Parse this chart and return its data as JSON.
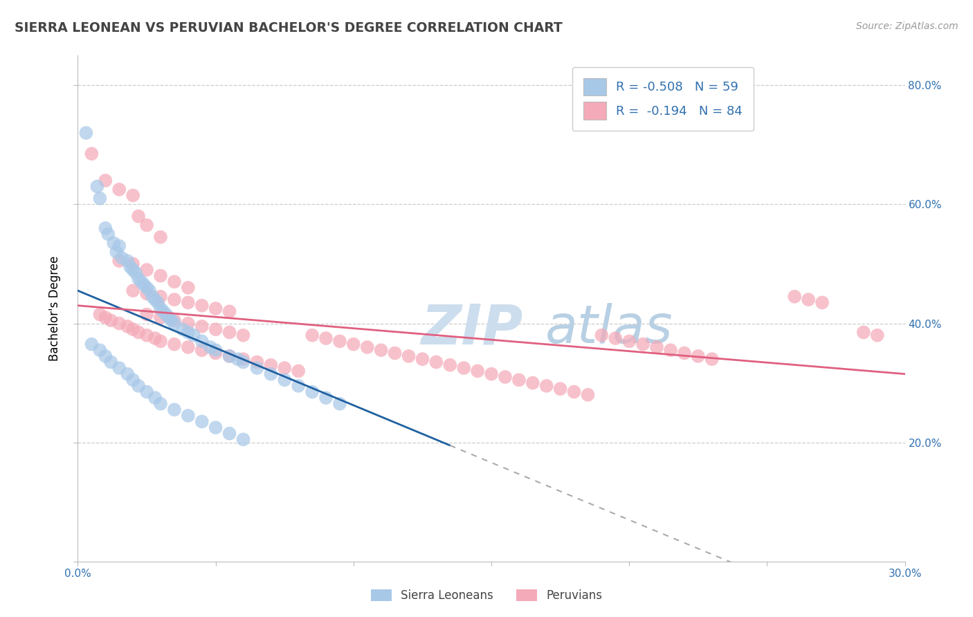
{
  "title": "SIERRA LEONEAN VS PERUVIAN BACHELOR'S DEGREE CORRELATION CHART",
  "source": "Source: ZipAtlas.com",
  "ylabel": "Bachelor's Degree",
  "xlim": [
    0.0,
    0.3
  ],
  "ylim": [
    0.0,
    0.85
  ],
  "sierra_leone_color": "#a8c8e8",
  "peru_color": "#f4aab8",
  "sierra_leone_line_color": "#2060a0",
  "peru_line_color": "#e06080",
  "watermark_color": "#ccdded",
  "background_color": "#ffffff",
  "grid_color": "#cccccc",
  "title_color": "#444444",
  "axis_tick_color": "#3070b0",
  "sl_line_x0": 0.0,
  "sl_line_y0": 0.455,
  "sl_line_x1": 0.135,
  "sl_line_y1": 0.195,
  "pe_line_x0": 0.0,
  "pe_line_y0": 0.43,
  "pe_line_x1": 0.3,
  "pe_line_y1": 0.315,
  "sierra_leonean_points": [
    [
      0.003,
      0.72
    ],
    [
      0.007,
      0.63
    ],
    [
      0.008,
      0.61
    ],
    [
      0.01,
      0.56
    ],
    [
      0.011,
      0.55
    ],
    [
      0.013,
      0.535
    ],
    [
      0.014,
      0.52
    ],
    [
      0.015,
      0.53
    ],
    [
      0.016,
      0.51
    ],
    [
      0.018,
      0.505
    ],
    [
      0.019,
      0.495
    ],
    [
      0.02,
      0.49
    ],
    [
      0.021,
      0.485
    ],
    [
      0.022,
      0.475
    ],
    [
      0.023,
      0.47
    ],
    [
      0.024,
      0.465
    ],
    [
      0.025,
      0.46
    ],
    [
      0.026,
      0.455
    ],
    [
      0.027,
      0.445
    ],
    [
      0.028,
      0.44
    ],
    [
      0.029,
      0.435
    ],
    [
      0.03,
      0.425
    ],
    [
      0.031,
      0.42
    ],
    [
      0.032,
      0.415
    ],
    [
      0.033,
      0.41
    ],
    [
      0.034,
      0.405
    ],
    [
      0.035,
      0.4
    ],
    [
      0.038,
      0.39
    ],
    [
      0.04,
      0.385
    ],
    [
      0.042,
      0.38
    ],
    [
      0.045,
      0.37
    ],
    [
      0.048,
      0.36
    ],
    [
      0.05,
      0.355
    ],
    [
      0.055,
      0.345
    ],
    [
      0.058,
      0.34
    ],
    [
      0.06,
      0.335
    ],
    [
      0.065,
      0.325
    ],
    [
      0.07,
      0.315
    ],
    [
      0.075,
      0.305
    ],
    [
      0.08,
      0.295
    ],
    [
      0.085,
      0.285
    ],
    [
      0.09,
      0.275
    ],
    [
      0.095,
      0.265
    ],
    [
      0.005,
      0.365
    ],
    [
      0.008,
      0.355
    ],
    [
      0.01,
      0.345
    ],
    [
      0.012,
      0.335
    ],
    [
      0.015,
      0.325
    ],
    [
      0.018,
      0.315
    ],
    [
      0.02,
      0.305
    ],
    [
      0.022,
      0.295
    ],
    [
      0.025,
      0.285
    ],
    [
      0.028,
      0.275
    ],
    [
      0.03,
      0.265
    ],
    [
      0.035,
      0.255
    ],
    [
      0.04,
      0.245
    ],
    [
      0.045,
      0.235
    ],
    [
      0.05,
      0.225
    ],
    [
      0.055,
      0.215
    ],
    [
      0.06,
      0.205
    ]
  ],
  "peruvian_points": [
    [
      0.005,
      0.685
    ],
    [
      0.01,
      0.64
    ],
    [
      0.015,
      0.625
    ],
    [
      0.02,
      0.615
    ],
    [
      0.022,
      0.58
    ],
    [
      0.025,
      0.565
    ],
    [
      0.03,
      0.545
    ],
    [
      0.015,
      0.505
    ],
    [
      0.02,
      0.5
    ],
    [
      0.025,
      0.49
    ],
    [
      0.03,
      0.48
    ],
    [
      0.035,
      0.47
    ],
    [
      0.04,
      0.46
    ],
    [
      0.02,
      0.455
    ],
    [
      0.025,
      0.45
    ],
    [
      0.03,
      0.445
    ],
    [
      0.035,
      0.44
    ],
    [
      0.04,
      0.435
    ],
    [
      0.045,
      0.43
    ],
    [
      0.05,
      0.425
    ],
    [
      0.055,
      0.42
    ],
    [
      0.025,
      0.415
    ],
    [
      0.03,
      0.41
    ],
    [
      0.035,
      0.405
    ],
    [
      0.04,
      0.4
    ],
    [
      0.045,
      0.395
    ],
    [
      0.05,
      0.39
    ],
    [
      0.055,
      0.385
    ],
    [
      0.06,
      0.38
    ],
    [
      0.008,
      0.415
    ],
    [
      0.01,
      0.41
    ],
    [
      0.012,
      0.405
    ],
    [
      0.015,
      0.4
    ],
    [
      0.018,
      0.395
    ],
    [
      0.02,
      0.39
    ],
    [
      0.022,
      0.385
    ],
    [
      0.025,
      0.38
    ],
    [
      0.028,
      0.375
    ],
    [
      0.03,
      0.37
    ],
    [
      0.035,
      0.365
    ],
    [
      0.04,
      0.36
    ],
    [
      0.045,
      0.355
    ],
    [
      0.05,
      0.35
    ],
    [
      0.055,
      0.345
    ],
    [
      0.06,
      0.34
    ],
    [
      0.065,
      0.335
    ],
    [
      0.07,
      0.33
    ],
    [
      0.075,
      0.325
    ],
    [
      0.08,
      0.32
    ],
    [
      0.085,
      0.38
    ],
    [
      0.09,
      0.375
    ],
    [
      0.095,
      0.37
    ],
    [
      0.1,
      0.365
    ],
    [
      0.105,
      0.36
    ],
    [
      0.11,
      0.355
    ],
    [
      0.115,
      0.35
    ],
    [
      0.12,
      0.345
    ],
    [
      0.125,
      0.34
    ],
    [
      0.13,
      0.335
    ],
    [
      0.135,
      0.33
    ],
    [
      0.14,
      0.325
    ],
    [
      0.145,
      0.32
    ],
    [
      0.15,
      0.315
    ],
    [
      0.155,
      0.31
    ],
    [
      0.16,
      0.305
    ],
    [
      0.165,
      0.3
    ],
    [
      0.17,
      0.295
    ],
    [
      0.175,
      0.29
    ],
    [
      0.18,
      0.285
    ],
    [
      0.185,
      0.28
    ],
    [
      0.19,
      0.38
    ],
    [
      0.195,
      0.375
    ],
    [
      0.2,
      0.37
    ],
    [
      0.205,
      0.365
    ],
    [
      0.21,
      0.36
    ],
    [
      0.215,
      0.355
    ],
    [
      0.22,
      0.35
    ],
    [
      0.225,
      0.345
    ],
    [
      0.23,
      0.34
    ],
    [
      0.26,
      0.445
    ],
    [
      0.265,
      0.44
    ],
    [
      0.27,
      0.435
    ],
    [
      0.285,
      0.385
    ],
    [
      0.29,
      0.38
    ]
  ]
}
